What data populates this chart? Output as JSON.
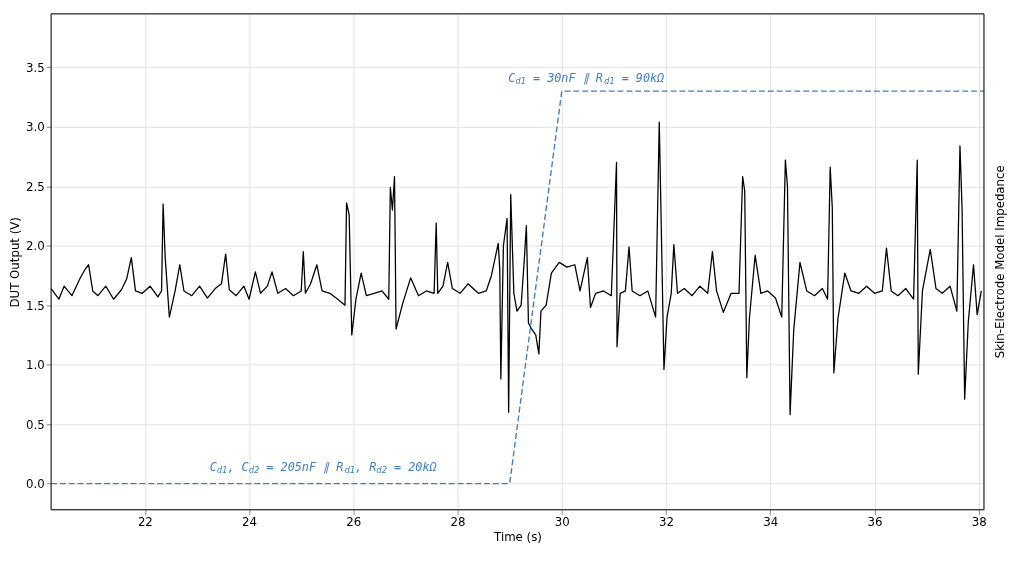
{
  "chart_data": {
    "type": "line",
    "xlabel": "Time (s)",
    "ylabel": "DUT Output (V)",
    "y2label": "Skin-Electrode Model Impedance",
    "xlim": [
      20.2,
      38.1
    ],
    "ylim": [
      -0.22,
      3.95
    ],
    "xticks": [
      22,
      24,
      26,
      28,
      30,
      32,
      34,
      36,
      38
    ],
    "yticks": [
      {
        "value": 0,
        "label": "0.0"
      },
      0.5,
      {
        "value": 1,
        "label": "1.0"
      },
      1.5,
      {
        "value": 2,
        "label": "2.0"
      },
      2.5,
      {
        "value": 3,
        "label": "3.0"
      },
      3.5
    ],
    "grid": true,
    "line_style": "solid",
    "series": [
      {
        "color": "#000000",
        "x": [
          20.2,
          20.35,
          20.45,
          20.6,
          20.75,
          20.85,
          20.92,
          21.0,
          21.1,
          21.25,
          21.4,
          21.55,
          21.65,
          21.74,
          21.82,
          21.95,
          22.1,
          22.25,
          22.32,
          22.35,
          22.39,
          22.47,
          22.58,
          22.67,
          22.75,
          22.9,
          23.05,
          23.2,
          23.35,
          23.47,
          23.55,
          23.62,
          23.75,
          23.9,
          24.0,
          24.12,
          24.22,
          24.35,
          24.44,
          24.55,
          24.7,
          24.85,
          25.0,
          25.04,
          25.08,
          25.18,
          25.3,
          25.4,
          25.55,
          25.7,
          25.84,
          25.87,
          25.92,
          25.97,
          26.05,
          26.15,
          26.25,
          26.4,
          26.55,
          26.68,
          26.71,
          26.75,
          26.79,
          26.82,
          26.95,
          27.1,
          27.25,
          27.4,
          27.55,
          27.59,
          27.62,
          27.72,
          27.81,
          27.9,
          28.05,
          28.2,
          28.4,
          28.55,
          28.65,
          28.78,
          28.81,
          28.83,
          28.88,
          28.95,
          28.98,
          29.02,
          29.08,
          29.14,
          29.22,
          29.28,
          29.32,
          29.36,
          29.42,
          29.5,
          29.56,
          29.6,
          29.7,
          29.8,
          29.95,
          30.1,
          30.25,
          30.35,
          30.49,
          30.55,
          30.65,
          30.8,
          30.95,
          31.05,
          31.06,
          31.12,
          31.22,
          31.29,
          31.35,
          31.5,
          31.65,
          31.8,
          31.87,
          31.91,
          31.96,
          32.02,
          32.1,
          32.15,
          32.22,
          32.35,
          32.5,
          32.65,
          32.8,
          32.89,
          32.97,
          33.1,
          33.25,
          33.4,
          33.47,
          33.51,
          33.55,
          33.6,
          33.71,
          33.82,
          33.95,
          34.1,
          34.22,
          34.29,
          34.33,
          34.38,
          34.45,
          34.57,
          34.7,
          34.85,
          35.0,
          35.1,
          35.15,
          35.19,
          35.22,
          35.3,
          35.43,
          35.55,
          35.7,
          35.85,
          36.0,
          36.15,
          36.23,
          36.32,
          36.45,
          36.6,
          36.75,
          36.82,
          36.84,
          36.92,
          37.07,
          37.18,
          37.3,
          37.45,
          37.58,
          37.64,
          37.68,
          37.73,
          37.8,
          37.9,
          37.97,
          38.05
        ],
        "values": [
          1.64,
          1.55,
          1.66,
          1.58,
          1.72,
          1.8,
          1.84,
          1.62,
          1.58,
          1.66,
          1.55,
          1.63,
          1.72,
          1.9,
          1.62,
          1.6,
          1.66,
          1.57,
          1.62,
          2.35,
          1.9,
          1.4,
          1.62,
          1.84,
          1.62,
          1.58,
          1.66,
          1.56,
          1.64,
          1.68,
          1.93,
          1.63,
          1.58,
          1.66,
          1.55,
          1.78,
          1.6,
          1.66,
          1.78,
          1.6,
          1.64,
          1.58,
          1.62,
          1.95,
          1.6,
          1.68,
          1.84,
          1.62,
          1.6,
          1.55,
          1.5,
          2.36,
          2.26,
          1.25,
          1.55,
          1.77,
          1.58,
          1.6,
          1.62,
          1.55,
          2.49,
          2.3,
          2.58,
          1.3,
          1.52,
          1.73,
          1.58,
          1.62,
          1.6,
          2.19,
          1.6,
          1.66,
          1.86,
          1.64,
          1.6,
          1.68,
          1.6,
          1.62,
          1.75,
          2.02,
          1.8,
          0.88,
          2.0,
          2.23,
          0.6,
          2.43,
          1.6,
          1.45,
          1.5,
          1.88,
          2.17,
          1.35,
          1.3,
          1.25,
          1.09,
          1.45,
          1.5,
          1.77,
          1.86,
          1.82,
          1.84,
          1.62,
          1.9,
          1.48,
          1.6,
          1.62,
          1.58,
          2.7,
          1.15,
          1.6,
          1.62,
          1.99,
          1.62,
          1.58,
          1.62,
          1.4,
          3.04,
          2.13,
          0.96,
          1.4,
          1.6,
          2.01,
          1.6,
          1.64,
          1.58,
          1.66,
          1.6,
          1.95,
          1.62,
          1.44,
          1.6,
          1.6,
          2.58,
          2.46,
          0.89,
          1.39,
          1.92,
          1.6,
          1.62,
          1.56,
          1.4,
          2.72,
          2.5,
          0.58,
          1.29,
          1.86,
          1.62,
          1.58,
          1.64,
          1.55,
          2.66,
          2.32,
          0.93,
          1.39,
          1.77,
          1.62,
          1.6,
          1.66,
          1.6,
          1.62,
          1.98,
          1.62,
          1.58,
          1.64,
          1.55,
          2.72,
          0.92,
          1.62,
          1.97,
          1.64,
          1.6,
          1.66,
          1.45,
          2.84,
          2.32,
          0.71,
          1.36,
          1.84,
          1.42,
          1.62
        ]
      },
      {
        "color": "#3d7fc1",
        "line_style": "dashed",
        "x": [
          20.2,
          29.0,
          30.0,
          38.1
        ],
        "values": [
          0,
          0,
          3.3,
          3.3
        ]
      }
    ],
    "annotations": [
      "C$_{d1}$ = 30nF ∥ R$_{d1}$ = 90kΩ",
      "C$_{d1}$, C$_{d2}$ = 205nF ∥ R$_{d1}$, R$_{d2}$ = 20kΩ"
    ]
  }
}
